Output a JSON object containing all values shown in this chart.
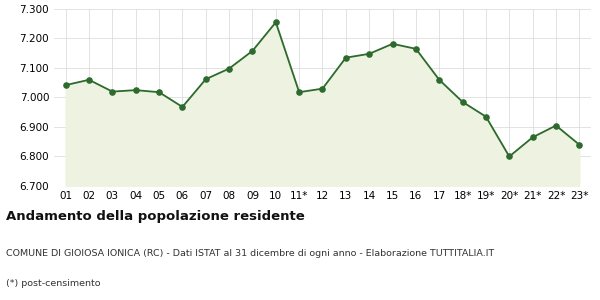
{
  "labels": [
    "01",
    "02",
    "03",
    "04",
    "05",
    "06",
    "07",
    "08",
    "09",
    "10",
    "11*",
    "12",
    "13",
    "14",
    "15",
    "16",
    "17",
    "18*",
    "19*",
    "20*",
    "21*",
    "22*",
    "23*"
  ],
  "values": [
    7042,
    7060,
    7020,
    7025,
    7018,
    6968,
    7062,
    7098,
    7158,
    7255,
    7018,
    7030,
    7135,
    7148,
    7182,
    7165,
    7060,
    6985,
    6935,
    6800,
    6865,
    6905,
    6840
  ],
  "line_color": "#2d6a2d",
  "fill_color": "#eef2e0",
  "marker_color": "#2d6a2d",
  "bg_color": "#ffffff",
  "grid_color": "#d8d8d8",
  "ylim": [
    6700,
    7300
  ],
  "yticks": [
    6700,
    6800,
    6900,
    7000,
    7100,
    7200,
    7300
  ],
  "title": "Andamento della popolazione residente",
  "subtitle": "COMUNE DI GIOIOSA IONICA (RC) - Dati ISTAT al 31 dicembre di ogni anno - Elaborazione TUTTITALIA.IT",
  "footnote": "(*) post-censimento",
  "title_fontsize": 9.5,
  "subtitle_fontsize": 6.8,
  "footnote_fontsize": 6.8
}
